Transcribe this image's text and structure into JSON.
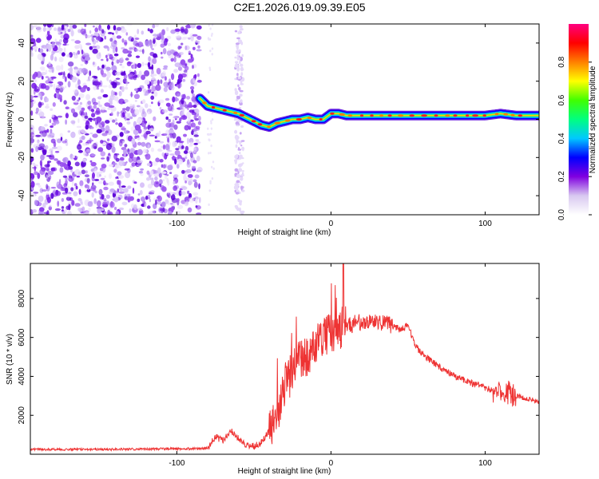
{
  "title": "C2E1.2026.019.09.39.E05",
  "chart_data": [
    {
      "type": "heatmap",
      "name": "spectrogram",
      "xlabel": "Height of straight line (km)",
      "ylabel": "Frequency (Hz)",
      "xlim": [
        -195,
        135
      ],
      "ylim": [
        -50,
        50
      ],
      "xticks": [
        -100,
        0,
        100
      ],
      "xtick_labels": [
        "-100",
        "0",
        "100"
      ],
      "yticks": [
        -40,
        -20,
        0,
        20,
        40
      ],
      "ytick_labels": [
        "-40",
        "-20",
        "0",
        "20",
        "40"
      ],
      "noise_region_x": [
        -195,
        -85
      ],
      "noise_strip_x": [
        -62,
        -57
      ],
      "ridge": {
        "x": [
          -85,
          -80,
          -75,
          -70,
          -65,
          -60,
          -55,
          -50,
          -45,
          -40,
          -35,
          -30,
          -25,
          -20,
          -15,
          -10,
          -5,
          0,
          5,
          10,
          20,
          40,
          60,
          80,
          100,
          110,
          120,
          135
        ],
        "freq": [
          11,
          7,
          6,
          5,
          4,
          3,
          1,
          -1,
          -3,
          -4,
          -2,
          -1,
          0,
          0,
          1,
          0,
          0,
          3,
          3,
          2,
          2,
          2,
          2,
          2,
          2,
          3,
          2,
          2
        ]
      },
      "colorbar": {
        "label": "Normalized spectral amplitude",
        "range": [
          0,
          1
        ],
        "ticks": [
          0.0,
          0.2,
          0.4,
          0.6,
          0.8
        ],
        "tick_labels": [
          "0.0",
          "0.2",
          "0.4",
          "0.6",
          "0.8"
        ],
        "colors": [
          "#ffffff",
          "#d8c8f0",
          "#8000e0",
          "#0000ff",
          "#00c8ff",
          "#00ff80",
          "#40ff00",
          "#ffff00",
          "#ff8000",
          "#ff0000",
          "#ff0080"
        ]
      }
    },
    {
      "type": "line",
      "name": "snr",
      "xlabel": "Height of straight line (km)",
      "ylabel": "SNR (10 * v/v)",
      "xlim": [
        -195,
        135
      ],
      "ylim": [
        0,
        9800
      ],
      "xticks": [
        -100,
        0,
        100
      ],
      "xtick_labels": [
        "-100",
        "0",
        "100"
      ],
      "yticks": [
        2000,
        4000,
        6000,
        8000
      ],
      "ytick_labels": [
        "2000",
        "4000",
        "6000",
        "8000"
      ],
      "color": "#ee3333",
      "series": [
        {
          "name": "SNR",
          "x": [
            -195,
            -150,
            -100,
            -80,
            -75,
            -70,
            -65,
            -60,
            -55,
            -50,
            -45,
            -40,
            -35,
            -30,
            -25,
            -20,
            -15,
            -10,
            -5,
            0,
            5,
            10,
            15,
            20,
            25,
            30,
            35,
            40,
            45,
            50,
            55,
            60,
            70,
            80,
            90,
            100,
            105,
            110,
            115,
            120,
            125,
            130,
            135
          ],
          "y": [
            250,
            250,
            280,
            300,
            900,
            700,
            1200,
            800,
            500,
            400,
            600,
            1200,
            2000,
            3600,
            4200,
            4900,
            5100,
            5600,
            6100,
            6300,
            6200,
            6600,
            6700,
            6800,
            6900,
            6800,
            6700,
            6600,
            6400,
            6600,
            5500,
            5100,
            4500,
            4000,
            3700,
            3400,
            3300,
            3200,
            3100,
            3000,
            2900,
            2800,
            2700
          ]
        }
      ]
    }
  ]
}
